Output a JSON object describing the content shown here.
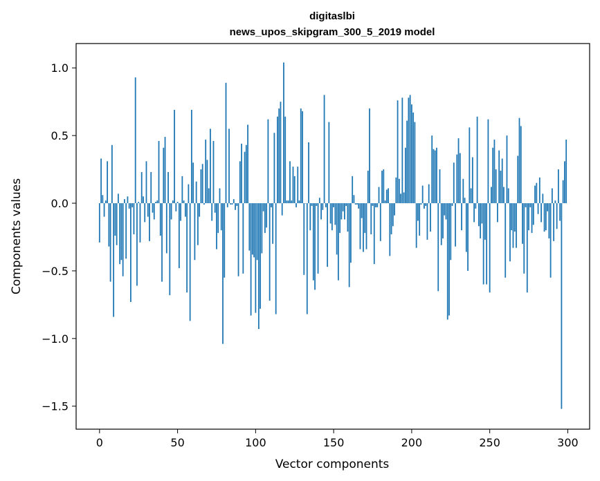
{
  "chart_data": {
    "type": "bar",
    "title": "digitaslbi",
    "subtitle": "news_upos_skipgram_300_5_2019 model",
    "xlabel": "Vector components",
    "ylabel": "Components values",
    "xlim": [
      -15,
      314
    ],
    "ylim": [
      -1.67,
      1.18
    ],
    "xticks": [
      0,
      50,
      100,
      150,
      200,
      250,
      300
    ],
    "yticks": [
      -1.5,
      -1.0,
      -0.5,
      0.0,
      0.5,
      1.0
    ],
    "ytick_labels": [
      "−1.5",
      "−1.0",
      "−0.5",
      "0.0",
      "0.5",
      "1.0"
    ],
    "xtick_labels": [
      "0",
      "50",
      "100",
      "150",
      "200",
      "250",
      "300"
    ],
    "grid": false,
    "bar_color": "#1f77b4",
    "values": [
      -0.29,
      0.33,
      0.06,
      -0.1,
      0.02,
      0.31,
      -0.32,
      -0.58,
      0.43,
      -0.84,
      -0.24,
      -0.31,
      0.07,
      -0.45,
      -0.42,
      -0.54,
      0.03,
      -0.41,
      0.05,
      -0.04,
      -0.73,
      -0.03,
      -0.23,
      0.93,
      -0.61,
      0.01,
      -0.29,
      0.23,
      0.05,
      -0.14,
      0.31,
      -0.1,
      -0.28,
      0.23,
      -0.07,
      -0.12,
      0.01,
      0.02,
      0.46,
      -0.24,
      -0.58,
      0.41,
      0.49,
      -0.37,
      0.23,
      -0.68,
      -0.12,
      0.02,
      0.69,
      -0.06,
      0.01,
      -0.48,
      -0.13,
      0.2,
      0.02,
      -0.1,
      -0.66,
      0.14,
      -0.87,
      0.69,
      0.3,
      -0.42,
      0.16,
      -0.31,
      -0.1,
      0.25,
      0.29,
      -0.01,
      0.47,
      0.32,
      0.11,
      0.55,
      -0.13,
      0.46,
      -0.07,
      -0.34,
      -0.22,
      0.11,
      -0.2,
      -1.04,
      -0.55,
      0.89,
      -0.03,
      0.55,
      -0.01,
      -0.01,
      0.03,
      -0.05,
      -0.02,
      -0.54,
      0.31,
      0.44,
      -0.52,
      0.38,
      0.43,
      0.58,
      -0.35,
      -0.83,
      -0.38,
      -0.4,
      -0.81,
      -0.42,
      -0.93,
      -0.78,
      -0.37,
      -0.06,
      -0.22,
      -0.18,
      0.62,
      -0.72,
      -0.03,
      -0.3,
      0.52,
      -0.82,
      0.64,
      0.7,
      0.75,
      -0.09,
      1.04,
      0.64,
      0.02,
      0.02,
      0.31,
      0.02,
      0.27,
      0.2,
      -0.03,
      0.27,
      0.02,
      0.7,
      0.68,
      -0.53,
      0.0,
      -0.82,
      0.45,
      -0.2,
      -0.02,
      -0.57,
      -0.64,
      -0.02,
      -0.52,
      0.04,
      -0.12,
      -0.05,
      0.8,
      -0.03,
      -0.47,
      0.6,
      -0.15,
      -0.2,
      -0.03,
      -0.16,
      -0.38,
      -0.57,
      -0.22,
      -0.12,
      -0.06,
      -0.12,
      -0.02,
      -0.21,
      -0.62,
      -0.44,
      0.2,
      0.06,
      -0.01,
      -0.01,
      -0.04,
      -0.34,
      -0.11,
      -0.36,
      -0.22,
      -0.34,
      0.24,
      0.7,
      -0.23,
      -0.02,
      -0.45,
      -0.03,
      -0.03,
      0.12,
      -0.28,
      0.24,
      0.25,
      0.02,
      0.1,
      0.11,
      -0.39,
      -0.23,
      -0.17,
      -0.09,
      0.19,
      0.76,
      0.18,
      0.07,
      0.78,
      0.08,
      0.41,
      0.61,
      0.78,
      0.8,
      0.73,
      0.67,
      0.6,
      -0.33,
      -0.13,
      -0.24,
      -0.01,
      0.13,
      -0.04,
      -0.02,
      -0.27,
      0.14,
      -0.21,
      0.5,
      0.4,
      0.39,
      0.41,
      -0.65,
      0.25,
      -0.31,
      -0.26,
      -0.09,
      -0.12,
      -0.86,
      -0.83,
      -0.42,
      -0.02,
      0.3,
      -0.32,
      0.36,
      0.48,
      0.37,
      -0.2,
      0.18,
      0.04,
      -0.36,
      -0.5,
      0.56,
      0.11,
      0.34,
      -0.14,
      -0.04,
      0.64,
      -0.17,
      -0.26,
      -0.15,
      -0.6,
      -0.27,
      -0.6,
      0.62,
      -0.66,
      0.12,
      0.41,
      0.47,
      0.25,
      -0.14,
      0.39,
      0.24,
      0.33,
      0.12,
      -0.55,
      0.5,
      0.11,
      -0.43,
      -0.2,
      -0.33,
      -0.21,
      -0.33,
      0.35,
      0.63,
      0.57,
      -0.3,
      -0.52,
      -0.03,
      -0.66,
      -0.2,
      -0.03,
      -0.22,
      -0.16,
      0.13,
      0.15,
      -0.08,
      0.19,
      -0.14,
      0.07,
      -0.21,
      -0.2,
      -0.06,
      -0.26,
      -0.55,
      0.11,
      -0.28,
      0.02,
      -0.19,
      0.25,
      -0.13,
      -1.52,
      0.17,
      0.31,
      0.47
    ]
  }
}
